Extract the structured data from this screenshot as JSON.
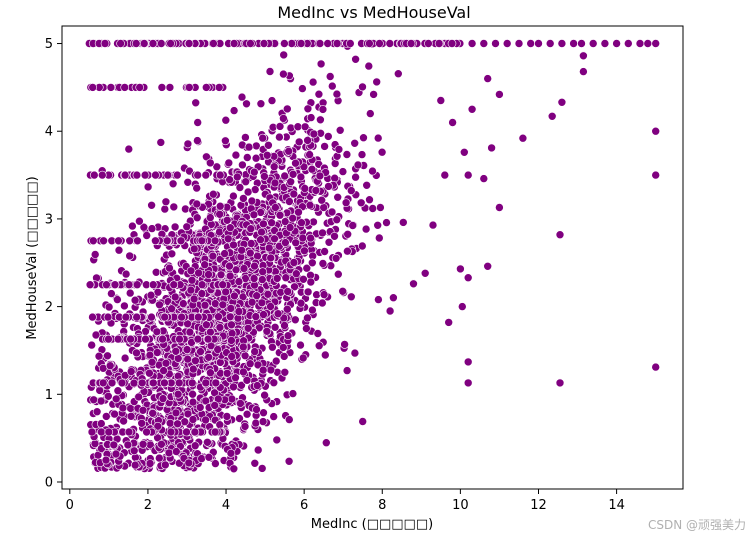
{
  "chart_data": {
    "type": "scatter",
    "title": "MedInc vs MedHouseVal",
    "xlabel": "MedInc (□□□□□)",
    "ylabel": "MedHouseVal (□□□□□)",
    "xlim": [
      -0.2,
      15.7
    ],
    "ylim": [
      -0.08,
      5.2
    ],
    "xticks": [
      0,
      2,
      4,
      6,
      8,
      10,
      12,
      14
    ],
    "yticks": [
      0,
      1,
      2,
      3,
      4,
      5
    ],
    "point_color": "#800080",
    "edge_color": "#ffffff",
    "grid": false,
    "legend": "none",
    "outliers": [
      {
        "x": 15.0,
        "y": 1.31
      },
      {
        "x": 15.0,
        "y": 3.5
      },
      {
        "x": 15.0,
        "y": 4.0
      },
      {
        "x": 12.55,
        "y": 1.13
      },
      {
        "x": 12.55,
        "y": 2.82
      },
      {
        "x": 12.6,
        "y": 4.33
      },
      {
        "x": 12.35,
        "y": 4.17
      },
      {
        "x": 13.15,
        "y": 4.68
      },
      {
        "x": 13.15,
        "y": 4.86
      },
      {
        "x": 11.6,
        "y": 3.92
      },
      {
        "x": 11.0,
        "y": 3.13
      },
      {
        "x": 11.0,
        "y": 4.42
      },
      {
        "x": 10.7,
        "y": 2.46
      },
      {
        "x": 10.2,
        "y": 1.13
      },
      {
        "x": 10.2,
        "y": 1.37
      },
      {
        "x": 10.2,
        "y": 2.33
      },
      {
        "x": 10.05,
        "y": 2.0
      },
      {
        "x": 10.0,
        "y": 2.43
      },
      {
        "x": 9.7,
        "y": 1.82
      },
      {
        "x": 10.2,
        "y": 3.5
      },
      {
        "x": 10.6,
        "y": 3.46
      },
      {
        "x": 10.8,
        "y": 3.81
      },
      {
        "x": 10.1,
        "y": 3.76
      },
      {
        "x": 9.3,
        "y": 2.93
      },
      {
        "x": 9.6,
        "y": 3.5
      },
      {
        "x": 7.5,
        "y": 0.69
      },
      {
        "x": 7.1,
        "y": 1.27
      },
      {
        "x": 7.3,
        "y": 1.47
      },
      {
        "x": 5.3,
        "y": 0.48
      },
      {
        "x": 4.2,
        "y": 0.15
      },
      {
        "x": 10.7,
        "y": 4.6
      },
      {
        "x": 10.3,
        "y": 4.25
      },
      {
        "x": 9.8,
        "y": 4.1
      },
      {
        "x": 9.5,
        "y": 4.35
      },
      {
        "x": 8.8,
        "y": 2.26
      },
      {
        "x": 9.1,
        "y": 2.38
      },
      {
        "x": 8.2,
        "y": 1.95
      },
      {
        "x": 7.9,
        "y": 2.08
      }
    ],
    "cap_points": [
      {
        "x": 0.5,
        "y": 5.0
      },
      {
        "x": 0.6,
        "y": 5.0
      },
      {
        "x": 0.75,
        "y": 5.0
      },
      {
        "x": 0.9,
        "y": 5.0
      },
      {
        "x": 1.3,
        "y": 5.0
      },
      {
        "x": 1.7,
        "y": 5.0
      },
      {
        "x": 10.3,
        "y": 5.0
      },
      {
        "x": 10.6,
        "y": 5.0
      },
      {
        "x": 10.9,
        "y": 5.0
      },
      {
        "x": 11.2,
        "y": 5.0
      },
      {
        "x": 11.5,
        "y": 5.0
      },
      {
        "x": 11.8,
        "y": 5.0
      },
      {
        "x": 12.0,
        "y": 5.0
      },
      {
        "x": 12.3,
        "y": 5.0
      },
      {
        "x": 12.6,
        "y": 5.0
      },
      {
        "x": 12.9,
        "y": 5.0
      },
      {
        "x": 13.1,
        "y": 5.0
      },
      {
        "x": 13.4,
        "y": 5.0
      },
      {
        "x": 13.7,
        "y": 5.0
      },
      {
        "x": 14.0,
        "y": 5.0
      },
      {
        "x": 14.3,
        "y": 5.0
      },
      {
        "x": 14.6,
        "y": 5.0
      },
      {
        "x": 14.8,
        "y": 5.0
      },
      {
        "x": 15.0,
        "y": 5.0
      }
    ],
    "dense_cloud": {
      "point_count": 2600,
      "x_range": [
        0.5,
        9.0
      ],
      "note": "dense band of observations rising with MedInc; values capped at 5.0"
    }
  },
  "watermark": "CSDN @顽强美力"
}
